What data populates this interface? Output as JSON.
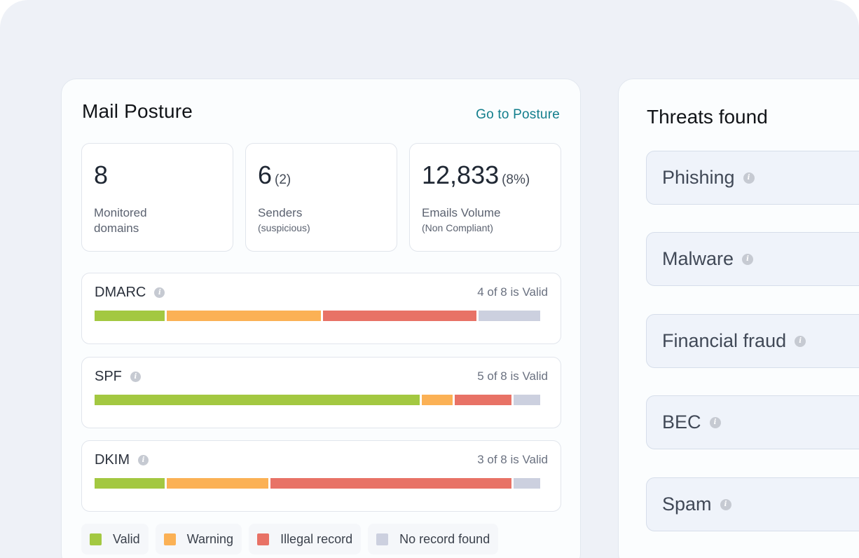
{
  "posture": {
    "title": "Mail Posture",
    "link": "Go to Posture",
    "stats": [
      {
        "value": "8",
        "sub": "",
        "label": "Monitored domains",
        "note": ""
      },
      {
        "value": "6",
        "sub": "(2)",
        "label": "Senders",
        "note": "(suspicious)"
      },
      {
        "value": "12,833",
        "sub": "(8%)",
        "label": "Emails Volume",
        "note": "(Non Compliant)"
      }
    ],
    "records": [
      {
        "name": "DMARC",
        "count": "4 of 8 is Valid",
        "segments": [
          16,
          35,
          35,
          14
        ]
      },
      {
        "name": "SPF",
        "count": "5 of 8 is Valid",
        "segments": [
          74,
          7,
          13,
          6
        ]
      },
      {
        "name": "DKIM",
        "count": "3 of 8 is Valid",
        "segments": [
          16,
          23,
          55,
          6
        ]
      }
    ],
    "legend": [
      {
        "label": "Valid",
        "color": "#a3c841"
      },
      {
        "label": "Warning",
        "color": "#fbb155"
      },
      {
        "label": "Illegal record",
        "color": "#e87266"
      },
      {
        "label": "No record found",
        "color": "#ccd0df"
      }
    ]
  },
  "threats": {
    "title": "Threats found",
    "items": [
      "Phishing",
      "Malware",
      "Financial fraud",
      "BEC",
      "Spam"
    ]
  }
}
